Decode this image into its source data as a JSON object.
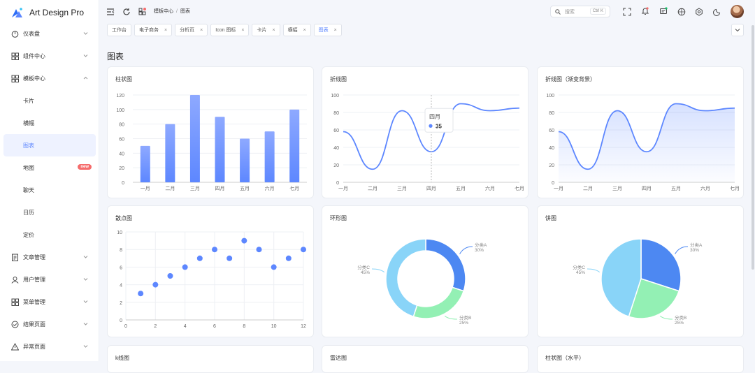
{
  "app": {
    "name": "Art Design Pro"
  },
  "sidebar": {
    "items": [
      {
        "label": "仪表盘",
        "icon": "dashboard-icon",
        "chevron": "down"
      },
      {
        "label": "组件中心",
        "icon": "grid-icon",
        "chevron": "down"
      },
      {
        "label": "模板中心",
        "icon": "grid-icon",
        "chevron": "up"
      },
      {
        "label": "卡片",
        "sub": true
      },
      {
        "label": "横幅",
        "sub": true
      },
      {
        "label": "图表",
        "sub": true,
        "active": true
      },
      {
        "label": "地图",
        "sub": true,
        "badge": "new"
      },
      {
        "label": "聊天",
        "sub": true
      },
      {
        "label": "日历",
        "sub": true
      },
      {
        "label": "定价",
        "sub": true
      },
      {
        "label": "文章管理",
        "icon": "article-icon",
        "chevron": "down"
      },
      {
        "label": "用户管理",
        "icon": "user-icon",
        "chevron": "down"
      },
      {
        "label": "菜单管理",
        "icon": "grid-icon",
        "chevron": "down"
      },
      {
        "label": "结果页面",
        "icon": "check-circle-icon",
        "chevron": "down"
      },
      {
        "label": "异常页面",
        "icon": "warning-icon",
        "chevron": "down"
      }
    ]
  },
  "header": {
    "breadcrumb": [
      "模板中心",
      "图表"
    ],
    "breadcrumb_sep": "/",
    "search_placeholder": "搜索",
    "search_shortcut": "Ctrl K"
  },
  "tabs": [
    {
      "label": "工作台",
      "closable": false
    },
    {
      "label": "电子商务",
      "closable": true
    },
    {
      "label": "分析页",
      "closable": true
    },
    {
      "label": "Icon 图标",
      "closable": true
    },
    {
      "label": "卡片",
      "closable": true
    },
    {
      "label": "横幅",
      "closable": true
    },
    {
      "label": "图表",
      "closable": true,
      "active": true
    }
  ],
  "tab_close": "×",
  "page": {
    "title": "图表"
  },
  "cards": [
    {
      "title": "柱状图"
    },
    {
      "title": "折线图"
    },
    {
      "title": "折线图（渐变背景）"
    },
    {
      "title": "散点图"
    },
    {
      "title": "环形图"
    },
    {
      "title": "饼图"
    },
    {
      "title": "k线图"
    },
    {
      "title": "雷达图"
    },
    {
      "title": "柱状图（水平）"
    }
  ],
  "colors": {
    "accent": "#5d87ff",
    "slice_a": "#4d88f2",
    "slice_b": "#93f0b4",
    "slice_c": "#89d4f8"
  },
  "chart_data": [
    {
      "type": "bar",
      "categories": [
        "一月",
        "二月",
        "三月",
        "四月",
        "五月",
        "六月",
        "七月"
      ],
      "values": [
        50,
        80,
        120,
        90,
        60,
        70,
        100
      ],
      "ylim": [
        0,
        120
      ],
      "yticks": [
        0,
        20,
        40,
        60,
        80,
        100,
        120
      ]
    },
    {
      "type": "line",
      "categories": [
        "一月",
        "二月",
        "三月",
        "四月",
        "五月",
        "六月",
        "七月"
      ],
      "values": [
        58,
        15,
        82,
        35,
        90,
        82,
        85
      ],
      "ylim": [
        0,
        100
      ],
      "yticks": [
        0,
        20,
        40,
        60,
        80,
        100
      ],
      "tooltip": {
        "category": "四月",
        "value": 35
      }
    },
    {
      "type": "area",
      "categories": [
        "一月",
        "二月",
        "三月",
        "四月",
        "五月",
        "六月",
        "七月"
      ],
      "values": [
        58,
        15,
        82,
        35,
        90,
        82,
        85
      ],
      "ylim": [
        0,
        100
      ],
      "yticks": [
        0,
        20,
        40,
        60,
        80,
        100
      ]
    },
    {
      "type": "scatter",
      "x": [
        1,
        2,
        3,
        4,
        5,
        6,
        7,
        8,
        9,
        10,
        11,
        12
      ],
      "y": [
        3,
        4,
        5,
        6,
        7,
        8,
        7,
        9,
        8,
        6,
        7,
        8
      ],
      "xlim": [
        0,
        12
      ],
      "ylim": [
        0,
        10
      ],
      "xticks": [
        0,
        2,
        4,
        6,
        8,
        10,
        12
      ],
      "yticks": [
        0,
        2,
        4,
        6,
        8,
        10
      ]
    },
    {
      "type": "pie",
      "donut": true,
      "slices": [
        {
          "name": "分类A",
          "pct": "30%",
          "value": 30
        },
        {
          "name": "分类B",
          "pct": "25%",
          "value": 25
        },
        {
          "name": "分类C",
          "pct": "45%",
          "value": 45
        }
      ]
    },
    {
      "type": "pie",
      "donut": false,
      "slices": [
        {
          "name": "分类A",
          "pct": "30%",
          "value": 30
        },
        {
          "name": "分类B",
          "pct": "25%",
          "value": 25
        },
        {
          "name": "分类C",
          "pct": "45%",
          "value": 45
        }
      ]
    }
  ]
}
